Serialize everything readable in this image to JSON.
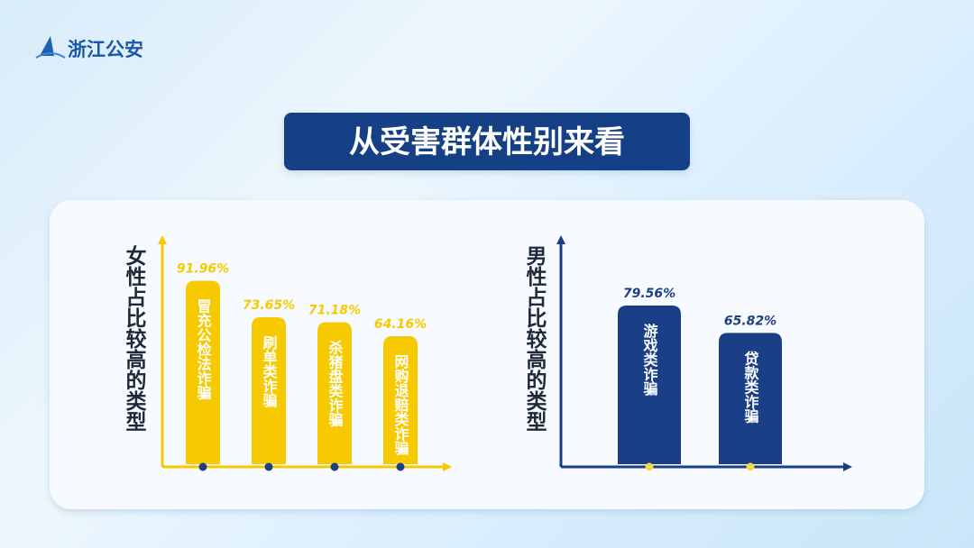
{
  "header": {
    "logo": "浙江公安",
    "title": "从受害群体性别来看"
  },
  "chart_data": [
    {
      "type": "bar",
      "y_label": "女性占比较高的类型",
      "categories": [
        "冒充公检法诈骗",
        "刷单类诈骗",
        "杀猪盘类诈骗",
        "网购退赔类诈骗"
      ],
      "values": [
        91.96,
        73.65,
        71.18,
        64.16
      ],
      "value_labels": [
        "91.96%",
        "73.65%",
        "71.18%",
        "64.16%"
      ],
      "color": "#f6c900",
      "dot_color": "#1b3f86",
      "ylim": [
        0,
        113
      ]
    },
    {
      "type": "bar",
      "y_label": "男性占比较高的类型",
      "categories": [
        "游戏类诈骗",
        "贷款类诈骗"
      ],
      "values": [
        79.56,
        65.82
      ],
      "value_labels": [
        "79.56%",
        "65.82%"
      ],
      "color": "#1b3f86",
      "dot_color": "#f6d650",
      "ylim": [
        0,
        113
      ]
    }
  ]
}
